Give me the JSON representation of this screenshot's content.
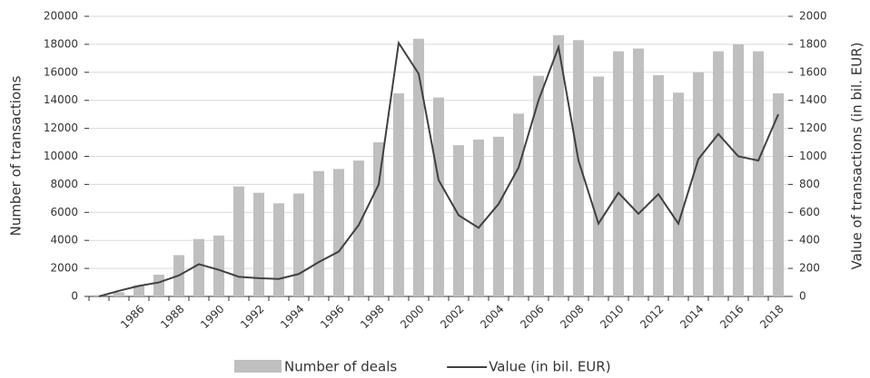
{
  "chart_data": {
    "type": "bar_line",
    "ylabel": "Number of transactions",
    "y2label": "Value of transactions (in bil. EUR)",
    "categories": [
      null,
      null,
      "1986",
      null,
      "1988",
      null,
      "1990",
      null,
      "1992",
      null,
      "1994",
      null,
      "1996",
      null,
      "1998",
      null,
      "2000",
      null,
      "2002",
      null,
      "2004",
      null,
      "2006",
      null,
      "2008",
      null,
      "2010",
      null,
      "2012",
      null,
      "2014",
      null,
      "2016",
      null,
      "2018"
    ],
    "series": [
      {
        "name": "Number of deals",
        "type": "bar",
        "color": "#bfbfbf",
        "values": [
          100,
          300,
          800,
          1550,
          2950,
          4100,
          4350,
          7850,
          7400,
          6650,
          7350,
          8950,
          9100,
          9700,
          11000,
          14500,
          18400,
          14200,
          10800,
          11200,
          11400,
          13050,
          15750,
          18650,
          18300,
          15700,
          17500,
          17700,
          15800,
          14550,
          16000,
          17500,
          18000,
          17500,
          14500
        ]
      },
      {
        "name": "Value (in bil. EUR)",
        "type": "line",
        "axis": "y2",
        "color": "#404040",
        "values": [
          0,
          40,
          75,
          100,
          150,
          230,
          190,
          140,
          130,
          125,
          160,
          245,
          320,
          510,
          800,
          1810,
          1590,
          830,
          580,
          490,
          660,
          920,
          1400,
          1780,
          970,
          520,
          740,
          590,
          730,
          520,
          980,
          1160,
          1000,
          970,
          1300
        ]
      }
    ],
    "ylim": [
      0,
      20000
    ],
    "yticks": [
      0,
      2000,
      4000,
      6000,
      8000,
      10000,
      12000,
      14000,
      16000,
      18000,
      20000
    ],
    "y2lim": [
      0,
      2000
    ],
    "y2ticks": [
      0,
      200,
      400,
      600,
      800,
      1000,
      1200,
      1400,
      1600,
      1800,
      2000
    ],
    "grid": true,
    "legend": "bottom"
  }
}
